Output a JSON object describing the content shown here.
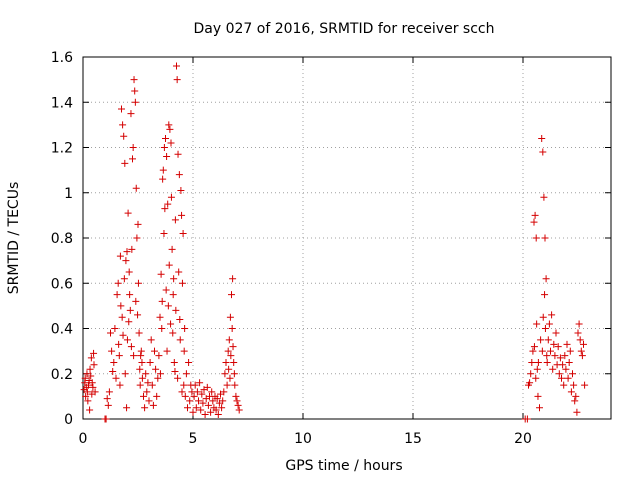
{
  "chart_data": {
    "type": "scatter",
    "title": "Day 027 of 2016, SRMTID for receiver scch",
    "xlabel": "GPS time / hours",
    "ylabel": "SRMTID / TECUs",
    "xlim": [
      0,
      24
    ],
    "ylim": [
      0,
      1.6
    ],
    "xticks": [
      0,
      5,
      10,
      15,
      20
    ],
    "xtick_labels": [
      "0",
      "5",
      "10",
      "15",
      "20"
    ],
    "yticks": [
      0,
      0.2,
      0.4,
      0.6,
      0.8,
      1.0,
      1.2,
      1.4,
      1.6
    ],
    "ytick_labels": [
      "0",
      "0.2",
      "0.4",
      "0.6",
      "0.8",
      "1",
      "1.2",
      "1.4",
      "1.6"
    ],
    "grid": true,
    "marker": "+",
    "series": [
      {
        "name": "SRMTID",
        "color": "#d40000",
        "points": [
          [
            0.05,
            0.13
          ],
          [
            0.08,
            0.16
          ],
          [
            0.1,
            0.18
          ],
          [
            0.12,
            0.1
          ],
          [
            0.15,
            0.14
          ],
          [
            0.18,
            0.2
          ],
          [
            0.2,
            0.12
          ],
          [
            0.22,
            0.08
          ],
          [
            0.25,
            0.15
          ],
          [
            0.28,
            0.17
          ],
          [
            0.3,
            0.04
          ],
          [
            0.32,
            0.22
          ],
          [
            0.35,
            0.19
          ],
          [
            0.38,
            0.27
          ],
          [
            0.4,
            0.11
          ],
          [
            0.42,
            0.16
          ],
          [
            0.45,
            0.14
          ],
          [
            0.48,
            0.29
          ],
          [
            0.5,
            0.24
          ],
          [
            0.55,
            0.12
          ],
          [
            1.0,
            0.0
          ],
          [
            1.05,
            0.0
          ],
          [
            1.1,
            0.09
          ],
          [
            1.15,
            0.06
          ],
          [
            1.2,
            0.12
          ],
          [
            1.25,
            0.38
          ],
          [
            1.3,
            0.3
          ],
          [
            1.35,
            0.21
          ],
          [
            1.4,
            0.25
          ],
          [
            1.45,
            0.4
          ],
          [
            1.5,
            0.18
          ],
          [
            1.55,
            0.55
          ],
          [
            1.6,
            0.6
          ],
          [
            1.62,
            0.33
          ],
          [
            1.65,
            0.28
          ],
          [
            1.68,
            0.15
          ],
          [
            1.7,
            0.72
          ],
          [
            1.72,
            0.5
          ],
          [
            1.75,
            1.37
          ],
          [
            1.78,
            0.45
          ],
          [
            1.8,
            1.3
          ],
          [
            1.82,
            0.37
          ],
          [
            1.85,
            1.25
          ],
          [
            1.88,
            0.62
          ],
          [
            1.9,
            1.13
          ],
          [
            1.92,
            0.2
          ],
          [
            1.95,
            0.7
          ],
          [
            1.98,
            0.05
          ],
          [
            2.0,
            0.74
          ],
          [
            2.02,
            0.35
          ],
          [
            2.05,
            0.91
          ],
          [
            2.08,
            0.43
          ],
          [
            2.1,
            0.65
          ],
          [
            2.12,
            0.55
          ],
          [
            2.15,
            0.48
          ],
          [
            2.18,
            1.35
          ],
          [
            2.2,
            0.32
          ],
          [
            2.22,
            0.75
          ],
          [
            2.25,
            1.15
          ],
          [
            2.28,
            1.2
          ],
          [
            2.3,
            0.28
          ],
          [
            2.32,
            1.5
          ],
          [
            2.35,
            1.45
          ],
          [
            2.38,
            1.4
          ],
          [
            2.4,
            0.52
          ],
          [
            2.42,
            1.02
          ],
          [
            2.45,
            0.8
          ],
          [
            2.48,
            0.46
          ],
          [
            2.5,
            0.86
          ],
          [
            2.52,
            0.6
          ],
          [
            2.55,
            0.38
          ],
          [
            2.58,
            0.22
          ],
          [
            2.6,
            0.15
          ],
          [
            2.62,
            0.28
          ],
          [
            2.65,
            0.3
          ],
          [
            2.68,
            0.25
          ],
          [
            2.7,
            0.18
          ],
          [
            2.75,
            0.1
          ],
          [
            2.8,
            0.05
          ],
          [
            2.85,
            0.2
          ],
          [
            2.9,
            0.12
          ],
          [
            2.95,
            0.16
          ],
          [
            3.0,
            0.08
          ],
          [
            3.05,
            0.25
          ],
          [
            3.1,
            0.35
          ],
          [
            3.15,
            0.15
          ],
          [
            3.2,
            0.06
          ],
          [
            3.25,
            0.3
          ],
          [
            3.3,
            0.22
          ],
          [
            3.35,
            0.1
          ],
          [
            3.4,
            0.18
          ],
          [
            3.45,
            0.28
          ],
          [
            3.5,
            0.45
          ],
          [
            3.52,
            0.2
          ],
          [
            3.55,
            0.64
          ],
          [
            3.58,
            0.4
          ],
          [
            3.6,
            0.52
          ],
          [
            3.62,
            1.06
          ],
          [
            3.65,
            1.1
          ],
          [
            3.68,
            0.82
          ],
          [
            3.7,
            1.2
          ],
          [
            3.72,
            0.93
          ],
          [
            3.75,
            1.24
          ],
          [
            3.78,
            0.57
          ],
          [
            3.8,
            1.16
          ],
          [
            3.82,
            0.3
          ],
          [
            3.85,
            0.95
          ],
          [
            3.88,
            0.5
          ],
          [
            3.9,
            1.3
          ],
          [
            3.92,
            0.68
          ],
          [
            3.95,
            1.28
          ],
          [
            3.98,
            0.42
          ],
          [
            4.0,
            1.22
          ],
          [
            4.02,
            0.98
          ],
          [
            4.05,
            0.75
          ],
          [
            4.08,
            0.38
          ],
          [
            4.1,
            0.55
          ],
          [
            4.12,
            0.62
          ],
          [
            4.15,
            0.25
          ],
          [
            4.18,
            0.21
          ],
          [
            4.2,
            0.88
          ],
          [
            4.22,
            0.48
          ],
          [
            4.25,
            1.56
          ],
          [
            4.28,
            1.5
          ],
          [
            4.3,
            0.18
          ],
          [
            4.32,
            1.17
          ],
          [
            4.35,
            0.65
          ],
          [
            4.38,
            1.08
          ],
          [
            4.4,
            0.44
          ],
          [
            4.42,
            0.35
          ],
          [
            4.45,
            1.01
          ],
          [
            4.48,
            0.9
          ],
          [
            4.5,
            0.12
          ],
          [
            4.52,
            0.6
          ],
          [
            4.55,
            0.82
          ],
          [
            4.58,
            0.15
          ],
          [
            4.6,
            0.3
          ],
          [
            4.62,
            0.4
          ],
          [
            4.65,
            0.1
          ],
          [
            4.7,
            0.2
          ],
          [
            4.75,
            0.05
          ],
          [
            4.8,
            0.25
          ],
          [
            4.85,
            0.08
          ],
          [
            4.9,
            0.15
          ],
          [
            4.95,
            0.12
          ],
          [
            5.0,
            0.03
          ],
          [
            5.05,
            0.1
          ],
          [
            5.1,
            0.15
          ],
          [
            5.15,
            0.05
          ],
          [
            5.2,
            0.12
          ],
          [
            5.25,
            0.08
          ],
          [
            5.3,
            0.16
          ],
          [
            5.35,
            0.04
          ],
          [
            5.4,
            0.11
          ],
          [
            5.45,
            0.07
          ],
          [
            5.5,
            0.13
          ],
          [
            5.55,
            0.02
          ],
          [
            5.6,
            0.09
          ],
          [
            5.65,
            0.14
          ],
          [
            5.7,
            0.06
          ],
          [
            5.75,
            0.1
          ],
          [
            5.8,
            0.03
          ],
          [
            5.85,
            0.12
          ],
          [
            5.9,
            0.08
          ],
          [
            5.95,
            0.05
          ],
          [
            6.0,
            0.1
          ],
          [
            6.05,
            0.04
          ],
          [
            6.1,
            0.09
          ],
          [
            6.15,
            0.02
          ],
          [
            6.2,
            0.07
          ],
          [
            6.25,
            0.11
          ],
          [
            6.3,
            0.05
          ],
          [
            6.35,
            0.08
          ],
          [
            6.4,
            0.12
          ],
          [
            6.45,
            0.2
          ],
          [
            6.5,
            0.25
          ],
          [
            6.55,
            0.15
          ],
          [
            6.6,
            0.3
          ],
          [
            6.62,
            0.22
          ],
          [
            6.65,
            0.35
          ],
          [
            6.68,
            0.18
          ],
          [
            6.7,
            0.45
          ],
          [
            6.72,
            0.28
          ],
          [
            6.75,
            0.55
          ],
          [
            6.78,
            0.4
          ],
          [
            6.8,
            0.62
          ],
          [
            6.82,
            0.32
          ],
          [
            6.85,
            0.25
          ],
          [
            6.88,
            0.2
          ],
          [
            6.9,
            0.15
          ],
          [
            6.95,
            0.1
          ],
          [
            7.0,
            0.08
          ],
          [
            7.05,
            0.06
          ],
          [
            7.1,
            0.04
          ],
          [
            20.1,
            0.0
          ],
          [
            20.2,
            0.0
          ],
          [
            20.25,
            0.15
          ],
          [
            20.3,
            0.16
          ],
          [
            20.35,
            0.2
          ],
          [
            20.4,
            0.25
          ],
          [
            20.45,
            0.3
          ],
          [
            20.5,
            0.87
          ],
          [
            20.52,
            0.32
          ],
          [
            20.55,
            0.9
          ],
          [
            20.58,
            0.18
          ],
          [
            20.6,
            0.8
          ],
          [
            20.62,
            0.42
          ],
          [
            20.65,
            0.22
          ],
          [
            20.68,
            0.1
          ],
          [
            20.7,
            0.25
          ],
          [
            20.75,
            0.05
          ],
          [
            20.8,
            0.35
          ],
          [
            20.85,
            1.24
          ],
          [
            20.88,
            0.3
          ],
          [
            20.9,
            1.18
          ],
          [
            20.92,
            0.45
          ],
          [
            20.95,
            0.98
          ],
          [
            20.98,
            0.55
          ],
          [
            21.0,
            0.8
          ],
          [
            21.02,
            0.4
          ],
          [
            21.05,
            0.62
          ],
          [
            21.08,
            0.28
          ],
          [
            21.1,
            0.25
          ],
          [
            21.15,
            0.35
          ],
          [
            21.2,
            0.42
          ],
          [
            21.25,
            0.3
          ],
          [
            21.3,
            0.46
          ],
          [
            21.35,
            0.22
          ],
          [
            21.4,
            0.33
          ],
          [
            21.45,
            0.28
          ],
          [
            21.5,
            0.38
          ],
          [
            21.55,
            0.24
          ],
          [
            21.6,
            0.32
          ],
          [
            21.65,
            0.2
          ],
          [
            21.7,
            0.27
          ],
          [
            21.75,
            0.18
          ],
          [
            21.8,
            0.24
          ],
          [
            21.85,
            0.15
          ],
          [
            21.9,
            0.28
          ],
          [
            21.95,
            0.22
          ],
          [
            22.0,
            0.33
          ],
          [
            22.05,
            0.18
          ],
          [
            22.1,
            0.25
          ],
          [
            22.15,
            0.3
          ],
          [
            22.2,
            0.12
          ],
          [
            22.25,
            0.2
          ],
          [
            22.3,
            0.15
          ],
          [
            22.35,
            0.08
          ],
          [
            22.4,
            0.1
          ],
          [
            22.45,
            0.03
          ],
          [
            22.5,
            0.38
          ],
          [
            22.55,
            0.42
          ],
          [
            22.6,
            0.35
          ],
          [
            22.65,
            0.3
          ],
          [
            22.7,
            0.28
          ],
          [
            22.75,
            0.33
          ],
          [
            22.8,
            0.15
          ]
        ]
      }
    ]
  }
}
